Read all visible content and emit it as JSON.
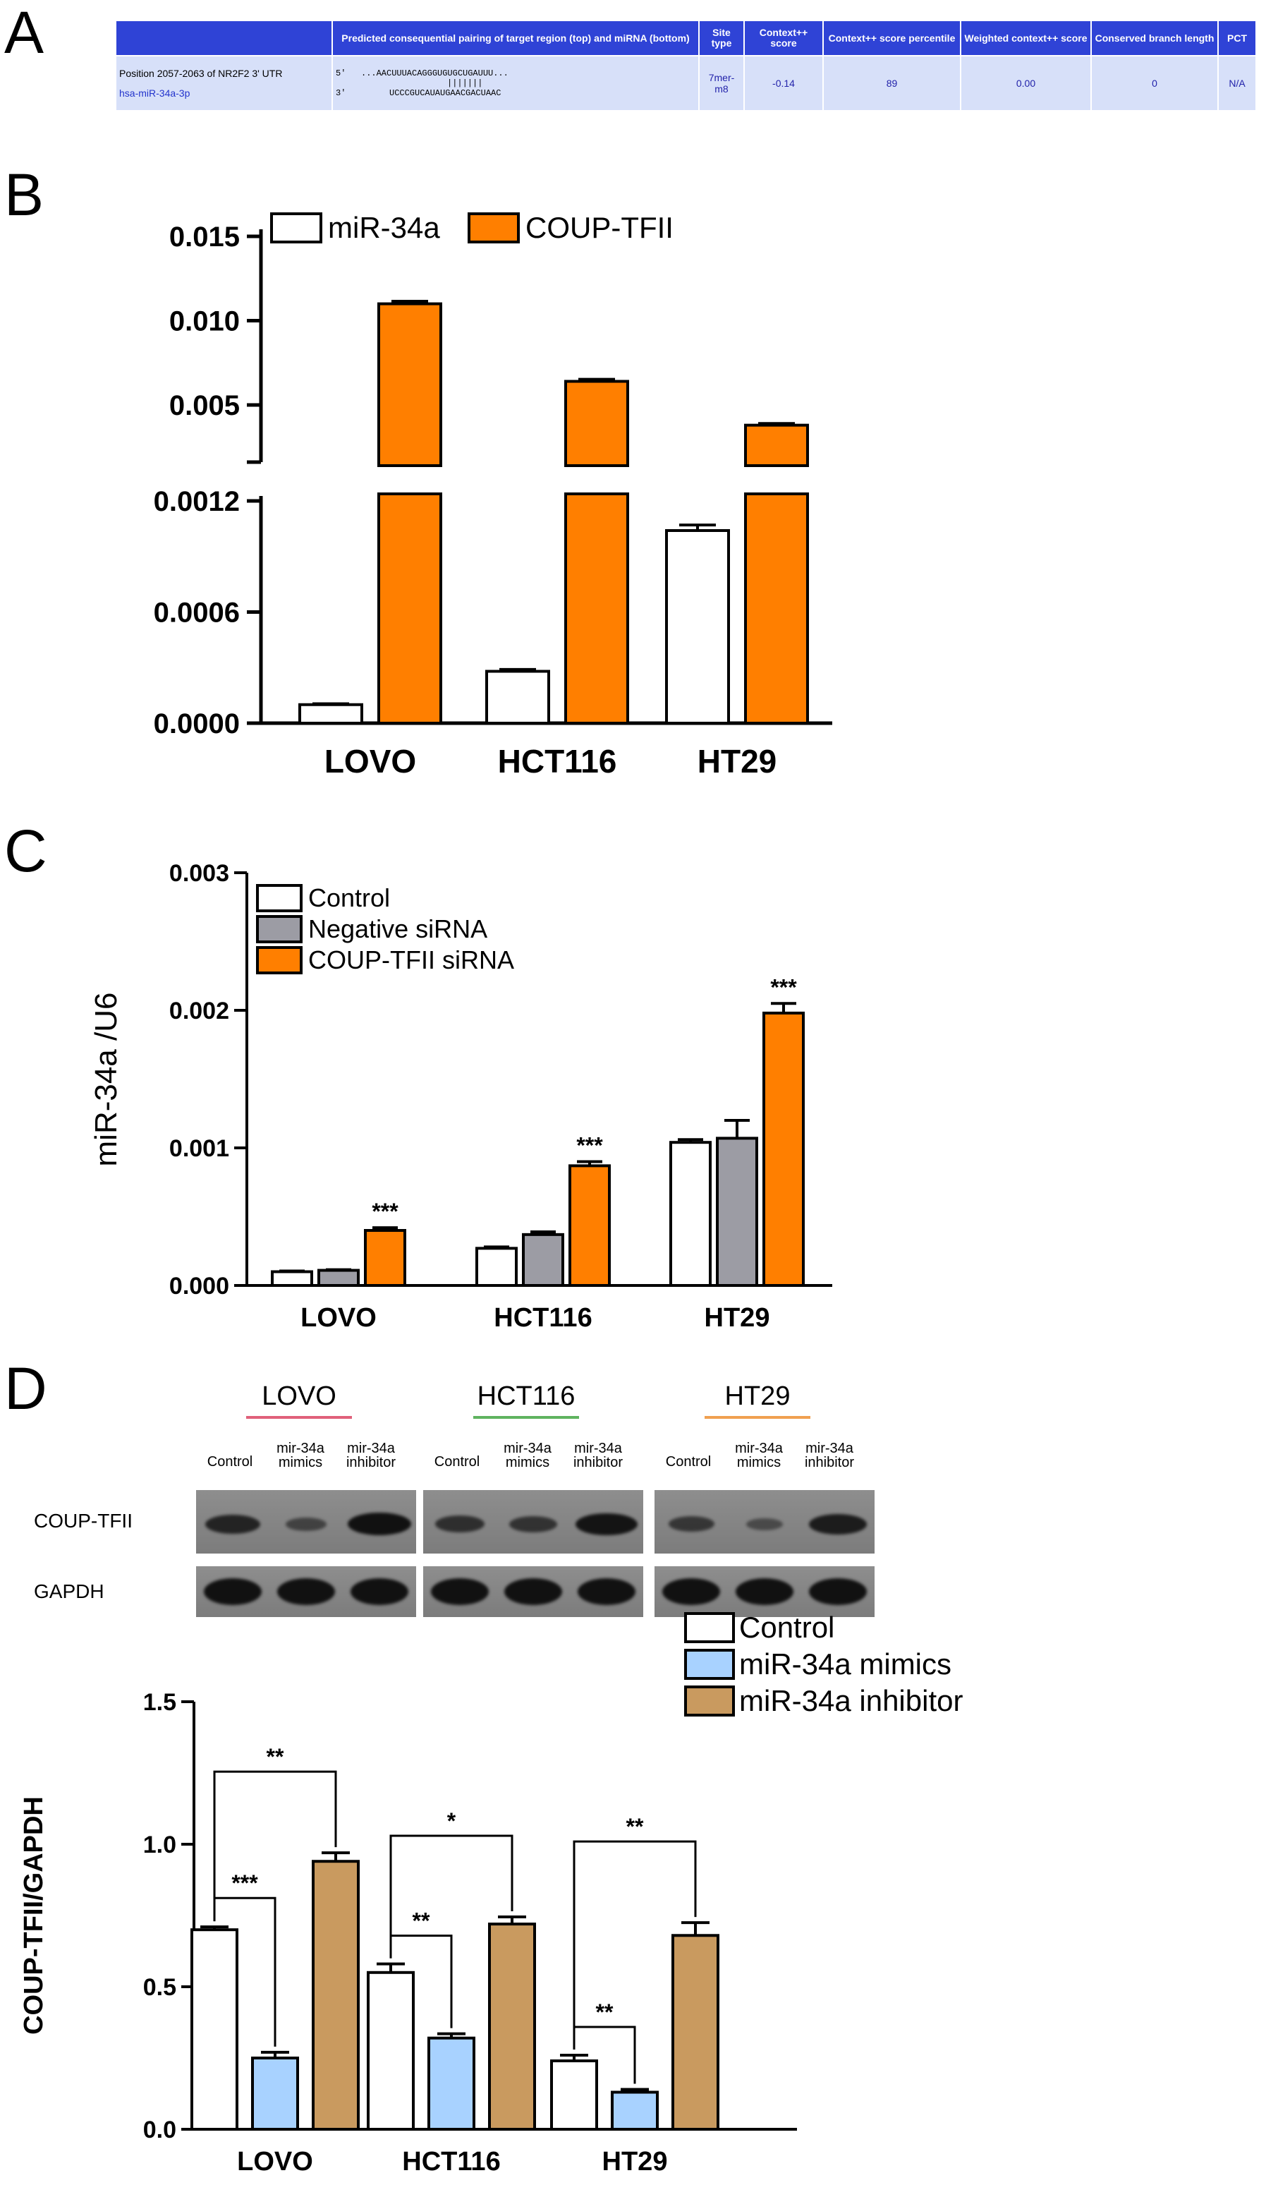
{
  "panel_letters": {
    "a": "A",
    "b": "B",
    "c": "C",
    "d": "D"
  },
  "table": {
    "headers": [
      "",
      "Predicted consequential pairing of target region (top) and miRNA (bottom)",
      "Site type",
      "Context++ score",
      "Context++ score percentile",
      "Weighted context++ score",
      "Conserved branch length",
      "PCT"
    ],
    "position": "Position 2057-2063 of NR2F2 3' UTR",
    "mirna": "hsa-miR-34a-3p",
    "five_prime": "5'",
    "three_prime": "3'",
    "target_seq": "...AACUUUACAGGGUGUGCUGAUUU...",
    "pairing_bars": "|||||||",
    "mirna_seq": "UCCCGUCAUAUGAACGACUAAC",
    "site_type": "7mer-m8",
    "context_score": "-0.14",
    "percentile": "89",
    "weighted": "0.00",
    "branch_length": "0",
    "pct": "N/A"
  },
  "blot": {
    "groups": [
      "LOVO",
      "HCT116",
      "HT29"
    ],
    "group_underline_colors": [
      "#e0607a",
      "#5fb35f",
      "#f0a050"
    ],
    "lanes": [
      "Control",
      "mir-34a mimics",
      "mir-34a inhibitor"
    ],
    "proteins": [
      "COUP-TFII",
      "GAPDH"
    ],
    "coup_intensity": [
      [
        0.75,
        0.35,
        1.0
      ],
      [
        0.6,
        0.55,
        0.95
      ],
      [
        0.5,
        0.25,
        0.85
      ]
    ]
  },
  "chart_data": [
    {
      "id": "B",
      "type": "bar",
      "categories": [
        "LOVO",
        "HCT116",
        "HT29"
      ],
      "series": [
        {
          "name": "miR-34a",
          "color": "#ffffff",
          "values": [
            0.0001,
            0.00028,
            0.00104
          ],
          "errors": [
            5e-06,
            1e-05,
            3e-05
          ]
        },
        {
          "name": "COUP-TFII",
          "color": "#ff7f00",
          "values": [
            0.011,
            0.0064,
            0.0038
          ],
          "errors": [
            0.00015,
            0.00012,
            0.0001
          ]
        }
      ],
      "broken_axis": true,
      "lower_ylim": [
        0,
        0.0012
      ],
      "lower_ticks": [
        "0.0000",
        "0.0006",
        "0.0012"
      ],
      "upper_ylim": [
        0.0014,
        0.015
      ],
      "upper_ticks": [
        "0.005",
        "0.010",
        "0.015"
      ],
      "legend": "top",
      "title": "",
      "xlabel": "",
      "ylabel": ""
    },
    {
      "id": "C",
      "type": "bar",
      "categories": [
        "LOVO",
        "HCT116",
        "HT29"
      ],
      "series": [
        {
          "name": "Control",
          "color": "#ffffff",
          "values": [
            0.0001,
            0.00027,
            0.00104
          ],
          "errors": [
            5e-06,
            1e-05,
            2e-05
          ]
        },
        {
          "name": "Negative siRNA",
          "color": "#9c9ca4",
          "values": [
            0.00011,
            0.00037,
            0.00107
          ],
          "errors": [
            5e-06,
            2e-05,
            0.00013
          ]
        },
        {
          "name": "COUP-TFII siRNA",
          "color": "#ff7f00",
          "values": [
            0.0004,
            0.00087,
            0.00198
          ],
          "errors": [
            2e-05,
            3e-05,
            7e-05
          ]
        }
      ],
      "significance": [
        "***",
        "***",
        "***"
      ],
      "ylim": [
        0,
        0.003
      ],
      "ticks": [
        "0.000",
        "0.001",
        "0.002",
        "0.003"
      ],
      "ylabel": "miR-34a /U6",
      "legend": "top-left",
      "title": "",
      "xlabel": ""
    },
    {
      "id": "D",
      "type": "bar",
      "categories": [
        "LOVO",
        "HCT116",
        "HT29"
      ],
      "series": [
        {
          "name": "Control",
          "color": "#ffffff",
          "values": [
            0.7,
            0.55,
            0.24
          ],
          "errors": [
            0.01,
            0.03,
            0.02
          ]
        },
        {
          "name": "miR-34a mimics",
          "color": "#a8d2ff",
          "values": [
            0.25,
            0.32,
            0.13
          ],
          "errors": [
            0.02,
            0.015,
            0.01
          ]
        },
        {
          "name": "miR-34a inhibitor",
          "color": "#c99a5f",
          "values": [
            0.94,
            0.72,
            0.68
          ],
          "errors": [
            0.03,
            0.025,
            0.045
          ]
        }
      ],
      "significance": [
        {
          "group": 0,
          "pair": "control-mimics",
          "label": "***"
        },
        {
          "group": 0,
          "pair": "control-inhibitor",
          "label": "**"
        },
        {
          "group": 1,
          "pair": "control-mimics",
          "label": "**"
        },
        {
          "group": 1,
          "pair": "control-inhibitor",
          "label": "*"
        },
        {
          "group": 2,
          "pair": "control-mimics",
          "label": "**"
        },
        {
          "group": 2,
          "pair": "control-inhibitor",
          "label": "**"
        }
      ],
      "ylim": [
        0,
        1.5
      ],
      "ticks": [
        "0.0",
        "0.5",
        "1.0",
        "1.5"
      ],
      "ylabel": "COUP-TFII/GAPDH",
      "legend": "top-right",
      "title": "",
      "xlabel": ""
    }
  ]
}
